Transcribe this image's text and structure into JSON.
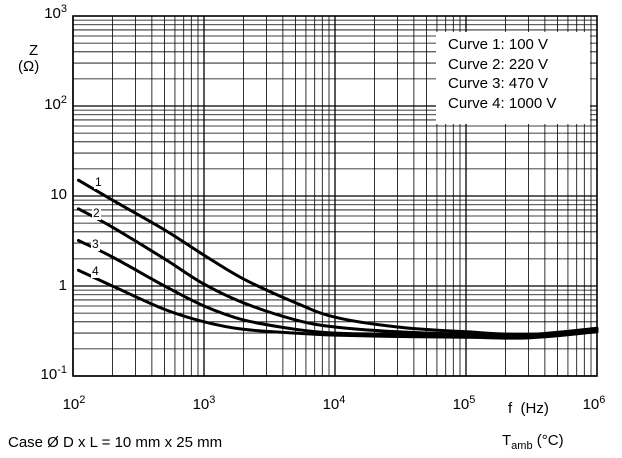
{
  "chart_data": {
    "type": "line",
    "x_scale": "log",
    "y_scale": "log",
    "xlim": [
      100,
      1000000
    ],
    "ylim": [
      0.1,
      1000
    ],
    "grid": true,
    "legend_position": "top-right",
    "xlabel": "f",
    "xunit": "(Hz)",
    "ylabel": "Z",
    "yunit": "(Ω)",
    "x_ticks": [
      {
        "base": "10",
        "exp": "2"
      },
      {
        "base": "10",
        "exp": "3"
      },
      {
        "base": "10",
        "exp": "4"
      },
      {
        "base": "10",
        "exp": "5"
      },
      {
        "base": "10",
        "exp": "6"
      }
    ],
    "y_ticks": [
      {
        "base": "10",
        "exp": "-1"
      },
      {
        "base": "1",
        "exp": ""
      },
      {
        "base": "10",
        "exp": ""
      },
      {
        "base": "10",
        "exp": "2"
      },
      {
        "base": "10",
        "exp": "3"
      }
    ],
    "legend": [
      "Curve 1: 100 V",
      "Curve 2: 220 V",
      "Curve 3: 470 V",
      "Curve 4: 1000 V"
    ],
    "series": [
      {
        "label": "1",
        "x": [
          110,
          200,
          500,
          1000,
          2000,
          5000,
          10000,
          30000,
          100000,
          300000,
          1000000
        ],
        "y": [
          15,
          9,
          4.2,
          2.2,
          1.2,
          0.65,
          0.45,
          0.35,
          0.31,
          0.29,
          0.34
        ]
      },
      {
        "label": "2",
        "x": [
          110,
          200,
          500,
          1000,
          2000,
          5000,
          10000,
          30000,
          100000,
          300000,
          1000000
        ],
        "y": [
          7.2,
          4.5,
          2.0,
          1.05,
          0.65,
          0.42,
          0.35,
          0.31,
          0.29,
          0.28,
          0.33
        ]
      },
      {
        "label": "3",
        "x": [
          110,
          200,
          500,
          1000,
          2000,
          5000,
          10000,
          30000,
          100000,
          300000,
          1000000
        ],
        "y": [
          3.2,
          2.1,
          1.0,
          0.6,
          0.42,
          0.33,
          0.3,
          0.29,
          0.28,
          0.27,
          0.32
        ]
      },
      {
        "label": "4",
        "x": [
          110,
          200,
          500,
          1000,
          2000,
          5000,
          10000,
          30000,
          100000,
          300000,
          1000000
        ],
        "y": [
          1.5,
          1.0,
          0.55,
          0.4,
          0.33,
          0.3,
          0.285,
          0.275,
          0.27,
          0.265,
          0.31
        ]
      }
    ],
    "footnote_left": "Case Ø D x L = 10 mm x 25 mm",
    "footnote_right_main": "T",
    "footnote_right_sub": "amb",
    "footnote_right_unit": " (°C)"
  }
}
